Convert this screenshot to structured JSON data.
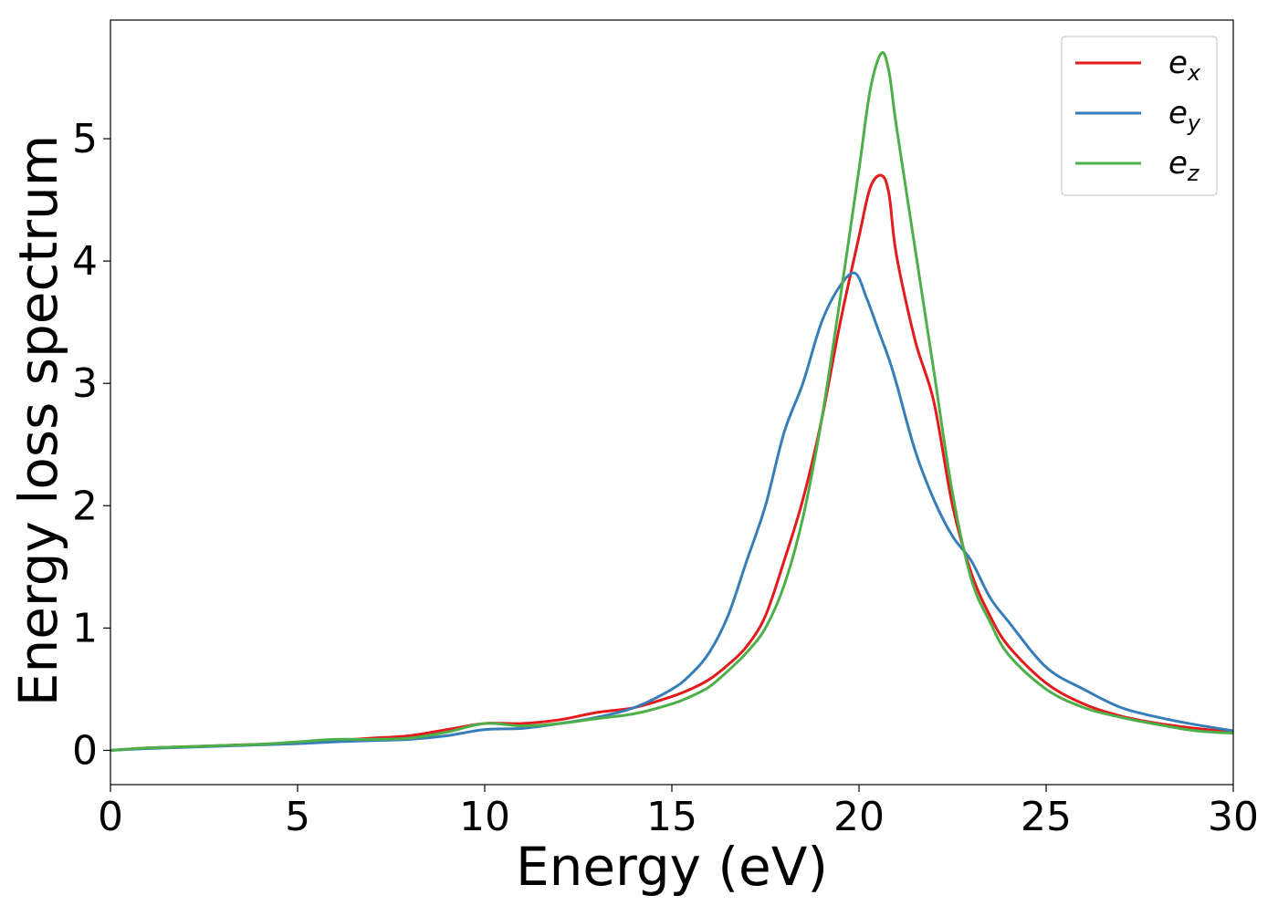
{
  "chart_data": {
    "type": "line",
    "title": "",
    "xlabel": "Energy (eV)",
    "ylabel": "Energy loss spectrum",
    "xlim": [
      0,
      30
    ],
    "ylim": [
      -0.28,
      5.97
    ],
    "x_ticks": [
      0,
      5,
      10,
      15,
      20,
      25,
      30
    ],
    "x_tick_labels": [
      "0",
      "5",
      "10",
      "15",
      "20",
      "25",
      "30"
    ],
    "y_ticks": [
      0,
      1,
      2,
      3,
      4,
      5
    ],
    "y_tick_labels": [
      "0",
      "1",
      "2",
      "3",
      "4",
      "5"
    ],
    "grid": false,
    "legend_position": "top-right",
    "series": [
      {
        "name": "e_x",
        "legend_base": "e",
        "legend_sub": "x",
        "color": "#e41a1c",
        "x": [
          0,
          1,
          2,
          3,
          4,
          5,
          6,
          7,
          8,
          9,
          10,
          11,
          12,
          13,
          14,
          15,
          15.5,
          16,
          16.5,
          17,
          17.5,
          18,
          18.5,
          19,
          19.5,
          20,
          20.3,
          20.6,
          20.8,
          21,
          21.5,
          22,
          22.5,
          23,
          23.5,
          24,
          25,
          26,
          27,
          28,
          29,
          30
        ],
        "y": [
          0,
          0.02,
          0.03,
          0.04,
          0.05,
          0.06,
          0.08,
          0.1,
          0.12,
          0.17,
          0.22,
          0.22,
          0.25,
          0.31,
          0.35,
          0.44,
          0.5,
          0.58,
          0.7,
          0.85,
          1.1,
          1.55,
          2.05,
          2.7,
          3.5,
          4.2,
          4.6,
          4.7,
          4.55,
          4.05,
          3.35,
          2.85,
          2.0,
          1.45,
          1.1,
          0.85,
          0.55,
          0.38,
          0.28,
          0.22,
          0.18,
          0.15
        ]
      },
      {
        "name": "e_y",
        "legend_base": "e",
        "legend_sub": "y",
        "color": "#377eb8",
        "x": [
          0,
          1,
          2,
          3,
          4,
          5,
          6,
          7,
          8,
          9,
          10,
          11,
          12,
          13,
          14,
          15,
          15.5,
          16,
          16.5,
          17,
          17.5,
          18,
          18.5,
          19,
          19.5,
          19.9,
          20.2,
          20.5,
          20.8,
          21,
          21.5,
          22,
          22.5,
          23,
          23.5,
          24,
          25,
          26,
          27,
          28,
          29,
          30
        ],
        "y": [
          0,
          0.015,
          0.025,
          0.035,
          0.045,
          0.055,
          0.07,
          0.08,
          0.09,
          0.12,
          0.17,
          0.18,
          0.22,
          0.27,
          0.35,
          0.5,
          0.62,
          0.8,
          1.1,
          1.55,
          2.0,
          2.6,
          3.0,
          3.5,
          3.8,
          3.9,
          3.7,
          3.45,
          3.2,
          3.0,
          2.45,
          2.05,
          1.75,
          1.55,
          1.25,
          1.05,
          0.68,
          0.5,
          0.35,
          0.27,
          0.21,
          0.16
        ]
      },
      {
        "name": "e_z",
        "legend_base": "e",
        "legend_sub": "z",
        "color": "#4daf4a",
        "x": [
          0,
          1,
          2,
          3,
          4,
          5,
          6,
          7,
          8,
          9,
          10,
          11,
          12,
          13,
          14,
          15,
          15.5,
          16,
          16.5,
          17,
          17.5,
          18,
          18.5,
          19,
          19.5,
          20,
          20.3,
          20.6,
          20.8,
          21,
          21.5,
          22,
          22.5,
          23,
          23.5,
          24,
          25,
          26,
          27,
          28,
          29,
          30
        ],
        "y": [
          0,
          0.02,
          0.03,
          0.04,
          0.05,
          0.07,
          0.09,
          0.09,
          0.1,
          0.15,
          0.22,
          0.2,
          0.22,
          0.26,
          0.3,
          0.38,
          0.44,
          0.52,
          0.65,
          0.8,
          1.0,
          1.35,
          1.9,
          2.7,
          3.7,
          4.75,
          5.4,
          5.7,
          5.55,
          5.1,
          4.1,
          3.1,
          2.1,
          1.4,
          1.05,
          0.78,
          0.5,
          0.35,
          0.27,
          0.21,
          0.16,
          0.14
        ]
      }
    ]
  }
}
